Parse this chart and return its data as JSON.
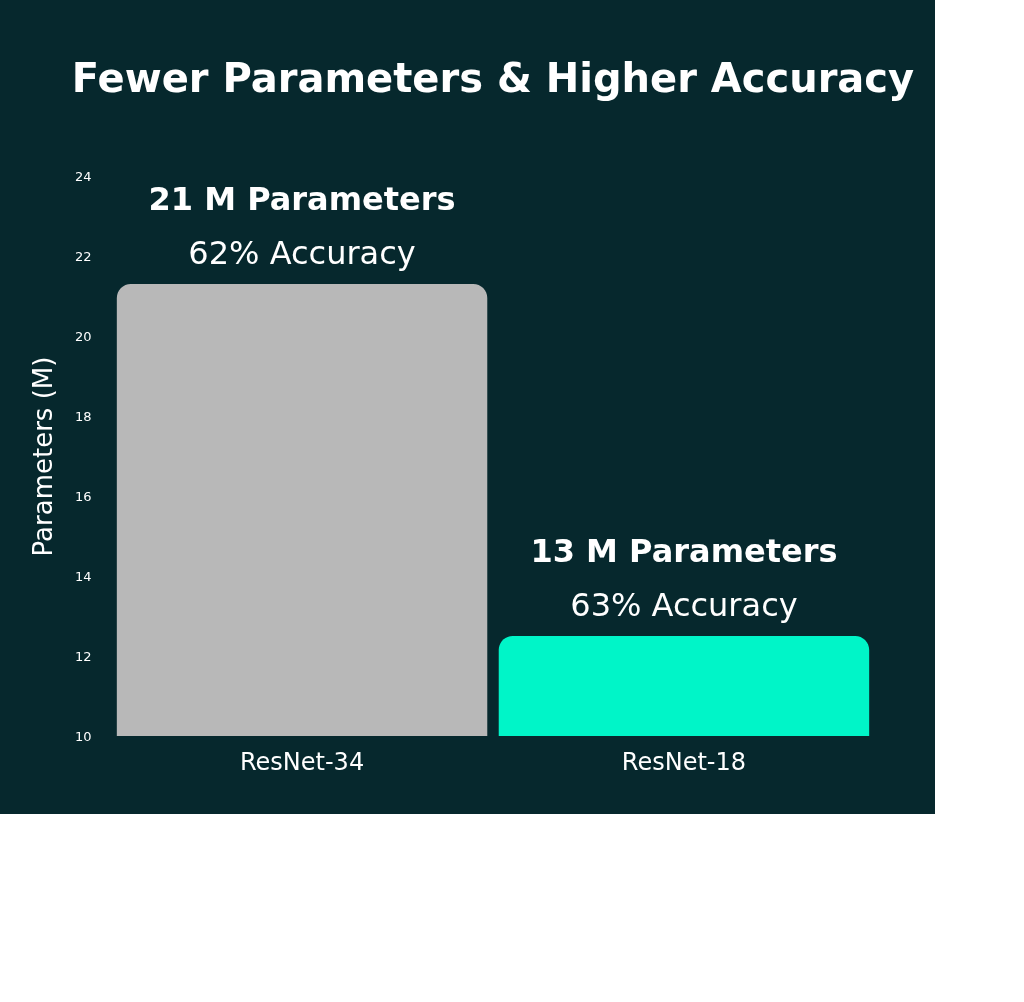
{
  "chart_data": {
    "type": "bar",
    "title": "Fewer Parameters & Higher Accuracy",
    "ylabel": "Parameters (M)",
    "categories": [
      "ResNet-34",
      "ResNet-18"
    ],
    "values": [
      21.3,
      12.5
    ],
    "colors": [
      "#b8b8b8",
      "#00f5c8"
    ],
    "value_labels": [
      "21 M Parameters",
      "13 M Parameters"
    ],
    "annotations": [
      {
        "text": "62% Accuracy",
        "x": "ResNet-34",
        "y": 21.3
      },
      {
        "text": "63% Accuracy",
        "x": "ResNet-18",
        "y": 12.5
      }
    ],
    "ylim": [
      10,
      24
    ],
    "yticks": [
      10,
      12,
      14,
      16,
      18,
      20,
      22,
      24
    ],
    "grid": false
  }
}
